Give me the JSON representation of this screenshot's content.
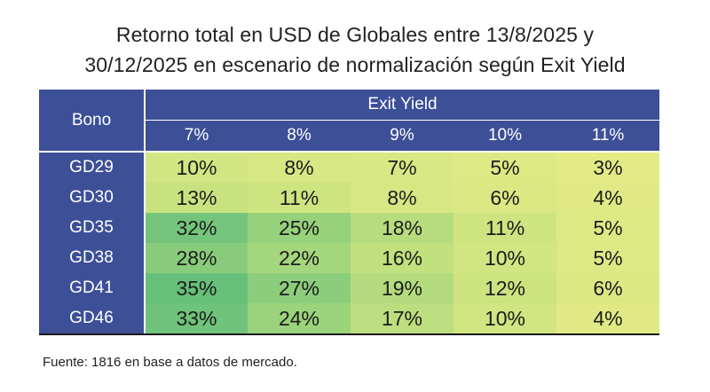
{
  "title_line1": "Retorno total en USD de Globales entre 13/8/2025 y",
  "title_line2": "30/12/2025 en escenario de normalización según Exit Yield",
  "source": "Fuente: 1816 en base a datos de mercado.",
  "chart_data": {
    "type": "heatmap",
    "title": "Retorno total en USD de Globales entre 13/8/2025 y 30/12/2025 en escenario de normalización según Exit Yield",
    "row_header": "Bono",
    "column_group_header": "Exit Yield",
    "columns": [
      "7%",
      "8%",
      "9%",
      "10%",
      "11%"
    ],
    "rows": [
      {
        "label": "GD29",
        "values": [
          "10%",
          "8%",
          "7%",
          "5%",
          "3%"
        ]
      },
      {
        "label": "GD30",
        "values": [
          "13%",
          "11%",
          "8%",
          "6%",
          "4%"
        ]
      },
      {
        "label": "GD35",
        "values": [
          "32%",
          "25%",
          "18%",
          "11%",
          "5%"
        ]
      },
      {
        "label": "GD38",
        "values": [
          "28%",
          "22%",
          "16%",
          "10%",
          "5%"
        ]
      },
      {
        "label": "GD41",
        "values": [
          "35%",
          "27%",
          "19%",
          "12%",
          "6%"
        ]
      },
      {
        "label": "GD46",
        "values": [
          "33%",
          "24%",
          "17%",
          "10%",
          "4%"
        ]
      }
    ],
    "color_scale": {
      "low": "#e2eb86",
      "mid": "#c2e07e",
      "high": "#66c07a"
    }
  }
}
